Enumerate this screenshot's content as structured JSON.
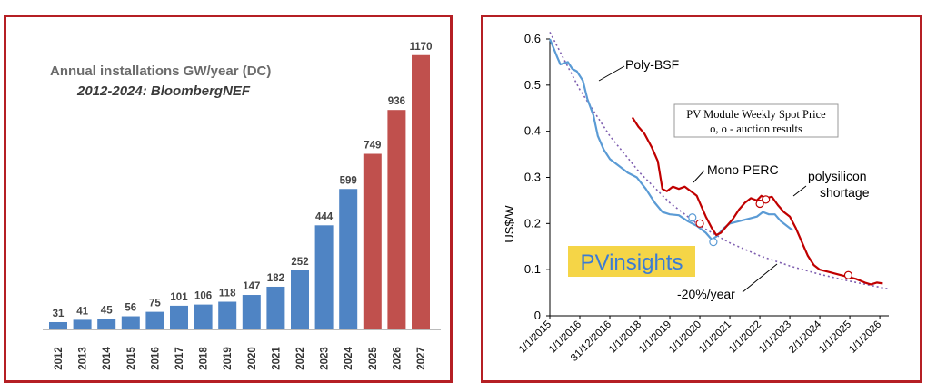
{
  "colors": {
    "frame": "#b51f24",
    "bar_actual": "#4f84c4",
    "bar_forecast": "#c0504d",
    "poly": "#5b9bd5",
    "mono": "#c00000",
    "trend": "#7f5fb0",
    "brand_bg": "#f5d547"
  },
  "chart_data": [
    {
      "type": "bar",
      "title": "Annual installations GW/year (DC)",
      "subtitle": "2012-2024: BloombergNEF",
      "categories": [
        "2012",
        "2013",
        "2014",
        "2015",
        "2016",
        "2017",
        "2018",
        "2019",
        "2020",
        "2021",
        "2022",
        "2023",
        "2024",
        "2025",
        "2026",
        "2027"
      ],
      "values": [
        31,
        41,
        45,
        56,
        75,
        101,
        106,
        118,
        147,
        182,
        252,
        444,
        599,
        749,
        936,
        1170
      ],
      "value_labels": [
        "31",
        "41",
        "45",
        "56",
        "75",
        "101",
        "106",
        "118",
        "147",
        "182",
        "252",
        "444",
        "599",
        "749",
        "936",
        "1170"
      ],
      "forecast_from_index": 13,
      "ylim": [
        0,
        1200
      ]
    },
    {
      "type": "line",
      "ylabel": "US$/W",
      "ylim": [
        0,
        0.6
      ],
      "yticks": [
        "0",
        "0.1",
        "0.2",
        "0.3",
        "0.4",
        "0.5",
        "0.6"
      ],
      "x_range": [
        2015.0,
        2026.3
      ],
      "x_ticks": [
        {
          "label": "1/1/2015",
          "x": 2015.0
        },
        {
          "label": "1/1/2016",
          "x": 2016.0
        },
        {
          "label": "31/12/2016",
          "x": 2017.0
        },
        {
          "label": "1/1/2018",
          "x": 2018.0
        },
        {
          "label": "1/1/2019",
          "x": 2019.0
        },
        {
          "label": "1/1/2020",
          "x": 2020.0
        },
        {
          "label": "1/1/2021",
          "x": 2021.0
        },
        {
          "label": "1/1/2022",
          "x": 2022.0
        },
        {
          "label": "1/1/2023",
          "x": 2023.0
        },
        {
          "label": "2/1/2024",
          "x": 2024.0
        },
        {
          "label": "1/1/2025",
          "x": 2025.0
        },
        {
          "label": "1/1/2026",
          "x": 2026.0
        }
      ],
      "series": [
        {
          "name": "Poly-BSF",
          "points": [
            [
              2015.0,
              0.6
            ],
            [
              2015.25,
              0.56
            ],
            [
              2015.35,
              0.545
            ],
            [
              2015.6,
              0.55
            ],
            [
              2015.75,
              0.535
            ],
            [
              2015.9,
              0.53
            ],
            [
              2016.1,
              0.51
            ],
            [
              2016.25,
              0.47
            ],
            [
              2016.45,
              0.435
            ],
            [
              2016.6,
              0.39
            ],
            [
              2016.8,
              0.36
            ],
            [
              2017.0,
              0.34
            ],
            [
              2017.3,
              0.325
            ],
            [
              2017.6,
              0.31
            ],
            [
              2017.9,
              0.3
            ],
            [
              2018.2,
              0.275
            ],
            [
              2018.5,
              0.245
            ],
            [
              2018.75,
              0.225
            ],
            [
              2019.0,
              0.22
            ],
            [
              2019.3,
              0.218
            ],
            [
              2019.6,
              0.205
            ],
            [
              2019.9,
              0.195
            ],
            [
              2020.2,
              0.18
            ],
            [
              2020.4,
              0.165
            ],
            [
              2020.55,
              0.172
            ],
            [
              2020.8,
              0.19
            ],
            [
              2021.0,
              0.2
            ],
            [
              2021.3,
              0.205
            ],
            [
              2021.6,
              0.21
            ],
            [
              2021.9,
              0.215
            ],
            [
              2022.1,
              0.225
            ],
            [
              2022.3,
              0.22
            ],
            [
              2022.5,
              0.22
            ],
            [
              2022.7,
              0.205
            ],
            [
              2022.9,
              0.195
            ],
            [
              2023.1,
              0.185
            ]
          ]
        },
        {
          "name": "Mono-PERC",
          "points": [
            [
              2017.75,
              0.43
            ],
            [
              2017.95,
              0.41
            ],
            [
              2018.15,
              0.395
            ],
            [
              2018.4,
              0.365
            ],
            [
              2018.6,
              0.335
            ],
            [
              2018.75,
              0.275
            ],
            [
              2018.9,
              0.27
            ],
            [
              2019.1,
              0.28
            ],
            [
              2019.3,
              0.275
            ],
            [
              2019.5,
              0.28
            ],
            [
              2019.7,
              0.27
            ],
            [
              2019.9,
              0.26
            ],
            [
              2020.0,
              0.245
            ],
            [
              2020.2,
              0.215
            ],
            [
              2020.4,
              0.19
            ],
            [
              2020.55,
              0.175
            ],
            [
              2020.7,
              0.18
            ],
            [
              2020.9,
              0.195
            ],
            [
              2021.1,
              0.21
            ],
            [
              2021.3,
              0.23
            ],
            [
              2021.5,
              0.245
            ],
            [
              2021.7,
              0.255
            ],
            [
              2021.9,
              0.25
            ],
            [
              2022.05,
              0.26
            ],
            [
              2022.2,
              0.255
            ],
            [
              2022.4,
              0.258
            ],
            [
              2022.6,
              0.24
            ],
            [
              2022.8,
              0.225
            ],
            [
              2023.0,
              0.215
            ],
            [
              2023.2,
              0.19
            ],
            [
              2023.4,
              0.16
            ],
            [
              2023.6,
              0.13
            ],
            [
              2023.8,
              0.11
            ],
            [
              2024.0,
              0.1
            ],
            [
              2024.3,
              0.095
            ],
            [
              2024.6,
              0.09
            ],
            [
              2024.9,
              0.085
            ],
            [
              2025.2,
              0.08
            ],
            [
              2025.5,
              0.072
            ],
            [
              2025.7,
              0.068
            ],
            [
              2025.9,
              0.072
            ],
            [
              2026.1,
              0.07
            ]
          ]
        },
        {
          "name": "-20%/year",
          "points": [
            [
              2015.0,
              0.615
            ],
            [
              2016.0,
              0.49
            ],
            [
              2017.0,
              0.39
            ],
            [
              2018.0,
              0.31
            ],
            [
              2019.0,
              0.245
            ],
            [
              2020.0,
              0.195
            ],
            [
              2021.0,
              0.158
            ],
            [
              2022.0,
              0.13
            ],
            [
              2023.0,
              0.108
            ],
            [
              2024.0,
              0.09
            ],
            [
              2025.0,
              0.075
            ],
            [
              2026.0,
              0.062
            ],
            [
              2026.3,
              0.058
            ]
          ]
        }
      ],
      "auction_markers_red": [
        [
          2020.0,
          0.2
        ],
        [
          2022.0,
          0.243
        ],
        [
          2022.2,
          0.252
        ],
        [
          2024.95,
          0.088
        ]
      ],
      "auction_markers_blue": [
        [
          2019.75,
          0.213
        ],
        [
          2020.45,
          0.16
        ]
      ],
      "annotations": {
        "poly": "Poly-BSF",
        "mono": "Mono-PERC",
        "shortage_line1": "polysilicon",
        "shortage_line2": "shortage",
        "trend": "-20%/year",
        "box_line1": "PV Module Weekly Spot Price",
        "box_line2": "o, o  - auction results",
        "brand": "PVinsights"
      }
    }
  ]
}
